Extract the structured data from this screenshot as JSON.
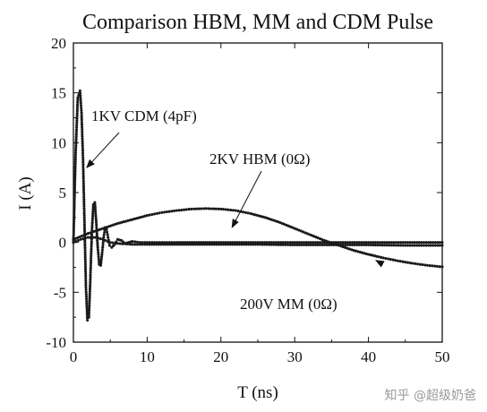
{
  "chart_data": {
    "type": "scatter",
    "title": "Comparison  HBM, MM and CDM Pulse",
    "xlabel": "T (ns)",
    "ylabel": "I (A)",
    "xlim": [
      0,
      50
    ],
    "ylim": [
      -10,
      20
    ],
    "xticks": [
      "0",
      "10",
      "20",
      "30",
      "40",
      "50"
    ],
    "yticks": [
      "-10",
      "-5",
      "0",
      "5",
      "10",
      "15",
      "20"
    ],
    "grid": false,
    "legend": "none",
    "series": [
      {
        "name": "1KV CDM (4pF)",
        "x": [
          0,
          0.3,
          0.6,
          0.9,
          1.1,
          1.3,
          1.5,
          1.7,
          1.9,
          2.1,
          2.3,
          2.5,
          2.7,
          2.9,
          3.1,
          3.3,
          3.5,
          3.7,
          3.9,
          4.1,
          4.3,
          4.5,
          4.7,
          4.9,
          5.2,
          5.6,
          6.0,
          6.5,
          7.0,
          7.5,
          8.0,
          9.0,
          10,
          12,
          14,
          17,
          20,
          25,
          30,
          35,
          40,
          45,
          50
        ],
        "y": [
          0,
          9.0,
          14.5,
          15.2,
          13.0,
          8.5,
          2.0,
          -4.5,
          -7.8,
          -7.5,
          -3.5,
          1.0,
          3.8,
          4.0,
          2.0,
          -0.5,
          -2.2,
          -2.3,
          -1.0,
          0.5,
          1.5,
          1.3,
          0.5,
          -0.3,
          -0.5,
          -0.2,
          0.3,
          0.2,
          -0.1,
          0.0,
          0.1,
          0.0,
          0.0,
          0.0,
          0.0,
          0.0,
          0.0,
          0.0,
          0.0,
          0.0,
          0.0,
          0.0,
          0.0
        ]
      },
      {
        "name": "2KV HBM (0Ω)",
        "x": [
          0,
          2,
          4,
          6,
          8,
          10,
          12,
          14,
          16,
          18,
          20,
          22,
          24,
          26,
          28,
          30,
          32,
          34,
          36,
          38,
          40,
          42,
          44,
          46,
          48,
          50
        ],
        "y": [
          0.3,
          0.9,
          1.4,
          1.9,
          2.3,
          2.7,
          3.0,
          3.2,
          3.35,
          3.4,
          3.35,
          3.2,
          2.9,
          2.5,
          2.0,
          1.4,
          0.8,
          0.2,
          -0.3,
          -0.8,
          -1.2,
          -1.55,
          -1.85,
          -2.1,
          -2.3,
          -2.45
        ]
      },
      {
        "name": "200V MM (0Ω)",
        "x": [
          0,
          1,
          2,
          3,
          4,
          5,
          6,
          8,
          10,
          15,
          20,
          25,
          30,
          35,
          40,
          45,
          50
        ],
        "y": [
          0.0,
          0.3,
          0.5,
          0.5,
          0.3,
          0.0,
          -0.1,
          -0.2,
          -0.2,
          -0.2,
          -0.2,
          -0.2,
          -0.25,
          -0.25,
          -0.25,
          -0.3,
          -0.3
        ]
      }
    ],
    "annotations": [
      {
        "text": "1KV CDM (4pF)",
        "arrow_to": [
          1.8,
          7.5
        ]
      },
      {
        "text": "2KV HBM (0Ω)",
        "arrow_to": [
          21.5,
          1.5
        ]
      },
      {
        "text": "200V MM (0Ω)",
        "arrow_to": [
          41,
          -1.8
        ]
      }
    ]
  },
  "watermark": "知乎 @超级奶爸"
}
